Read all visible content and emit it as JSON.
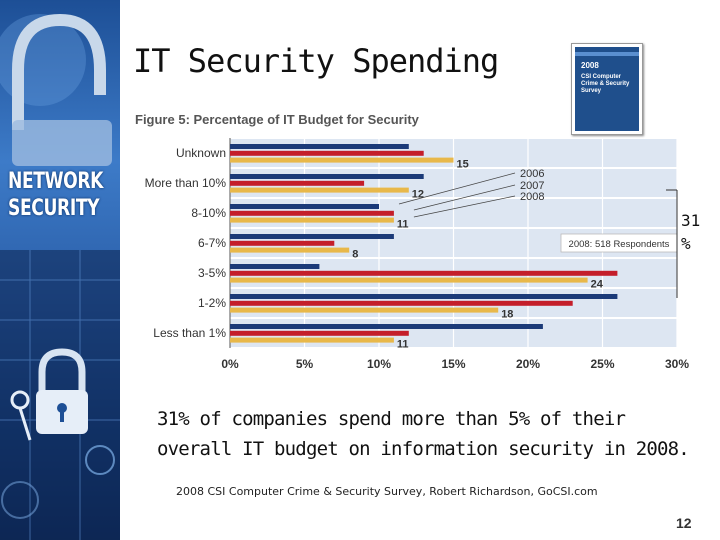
{
  "sidebar": {
    "line1": "NETWORK",
    "line2": "SECURITY"
  },
  "slide": {
    "title": "IT Security Spending",
    "callout_value": "31",
    "callout_unit": "%",
    "body": "31% of companies spend more than 5% of their overall IT budget on information security in 2008.",
    "citation": "2008 CSI Computer Crime & Security Survey, Robert Richardson, GoCSI.com",
    "page_number": "12"
  },
  "report_cover": {
    "year": "2008",
    "name": "CSI Computer Crime & Security Survey"
  },
  "chart_data": {
    "type": "bar",
    "orientation": "horizontal",
    "title": "Figure 5: Percentage of IT Budget for Security",
    "categories": [
      "Unknown",
      "More than 10%",
      "8-10%",
      "6-7%",
      "3-5%",
      "1-2%",
      "Less than 1%"
    ],
    "series": [
      {
        "name": "2006",
        "color": "#1b3a78",
        "values": [
          12,
          13,
          10,
          11,
          6,
          26,
          21
        ]
      },
      {
        "name": "2007",
        "color": "#c41e2a",
        "values": [
          13,
          9,
          11,
          7,
          26,
          23,
          12
        ]
      },
      {
        "name": "2008",
        "color": "#e8b84a",
        "values": [
          15,
          12,
          11,
          8,
          24,
          18,
          11
        ]
      }
    ],
    "data_labels_series": "2008",
    "xlim": [
      0,
      30
    ],
    "xticks": [
      "0%",
      "5%",
      "10%",
      "15%",
      "20%",
      "25%",
      "30%"
    ],
    "legend": [
      "2006",
      "2007",
      "2008"
    ],
    "respondents_note": "2008: 518 Respondents"
  }
}
